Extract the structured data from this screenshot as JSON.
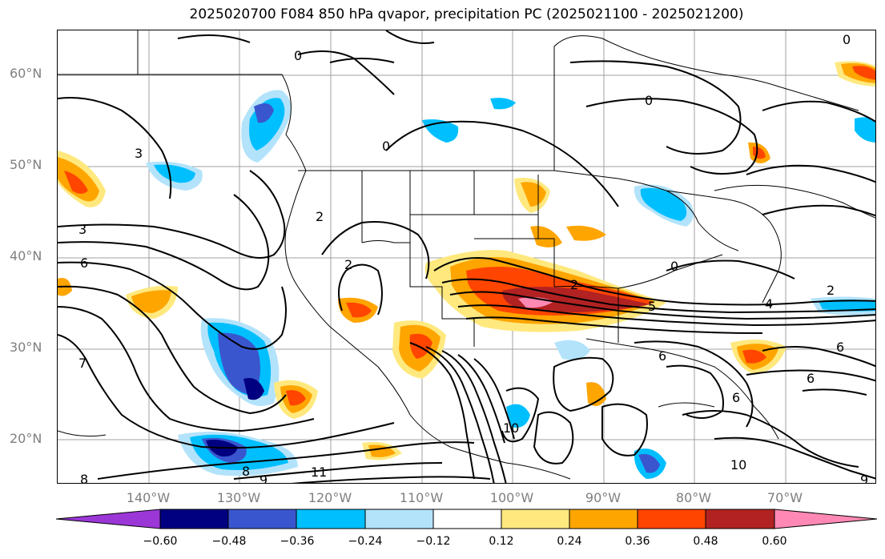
{
  "title": "2025020700 F084 850 hPa qvapor, precipitation PC (2025021100 - 2025021200)",
  "lat_labels": [
    "60°N",
    "50°N",
    "40°N",
    "30°N",
    "20°N"
  ],
  "lon_labels": [
    "140°W",
    "130°W",
    "120°W",
    "110°W",
    "100°W",
    "90°W",
    "80°W",
    "70°W"
  ],
  "colorbar": {
    "ticks": [
      "−0.60",
      "−0.48",
      "−0.36",
      "−0.24",
      "−0.12",
      "0.12",
      "0.24",
      "0.36",
      "0.48",
      "0.60"
    ],
    "colors": [
      "#9b37d6",
      "#000080",
      "#3a56cf",
      "#00bfff",
      "#b3e3fb",
      "#ffffff",
      "#ffe97f",
      "#ffa500",
      "#ff4500",
      "#b22222",
      "#ff89b4"
    ]
  },
  "contour_labels": [
    "0",
    "0",
    "0",
    "0",
    "0",
    "2",
    "2",
    "2",
    "2",
    "3",
    "3",
    "6",
    "6",
    "6",
    "6",
    "6",
    "7",
    "8",
    "8",
    "9",
    "9",
    "10",
    "10",
    "11",
    "5",
    "4"
  ]
}
